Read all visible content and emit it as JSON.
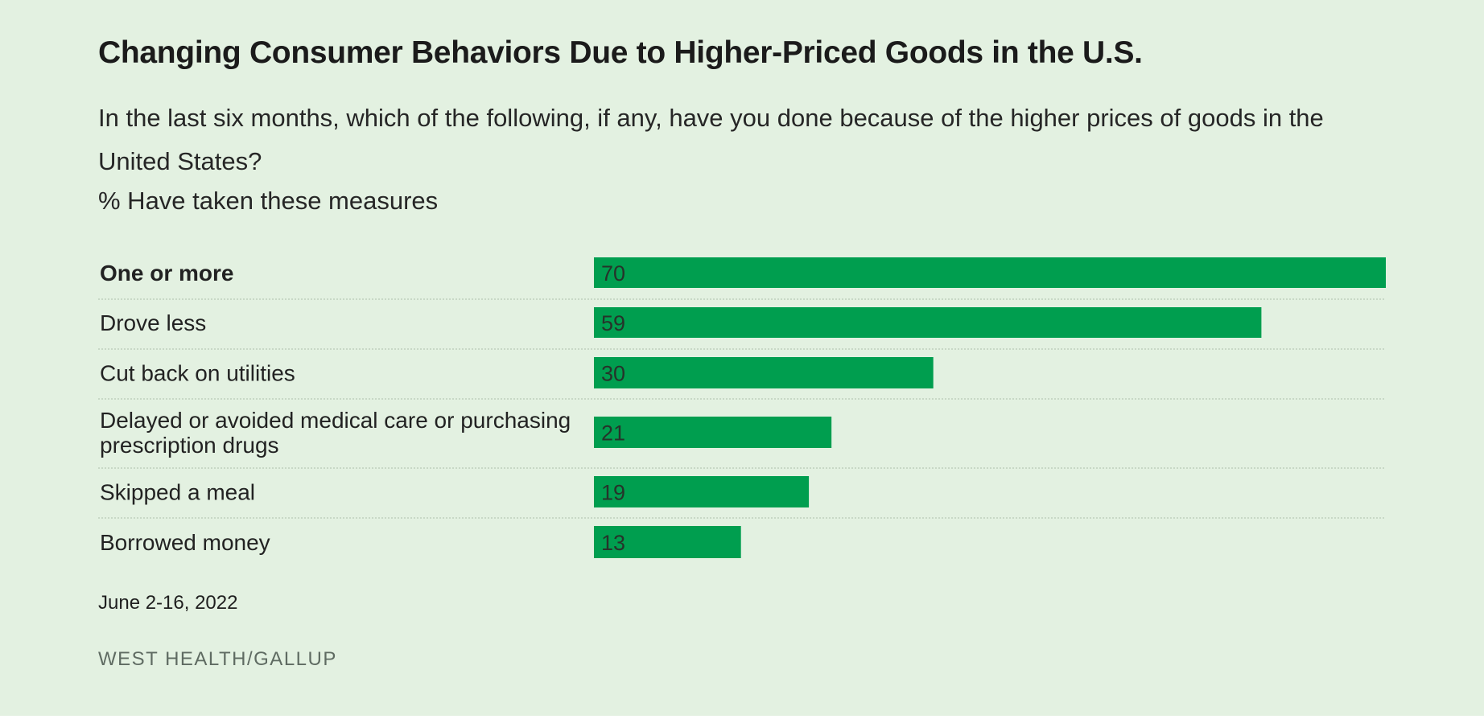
{
  "header": {
    "title": "Changing Consumer Behaviors Due to Higher-Priced Goods in the U.S.",
    "subtitle": "In the last six months, which of the following, if any, have you done because of the higher prices of goods in the United States?",
    "measure": "% Have taken these measures"
  },
  "footer": {
    "date": "June 2-16, 2022",
    "source": "WEST HEALTH/GALLUP"
  },
  "colors": {
    "bar": "#009e4f",
    "background": "#e3f1e1",
    "gridline": "#b9c9b7"
  },
  "chart_data": {
    "type": "bar",
    "orientation": "horizontal",
    "categories": [
      "One or more",
      "Drove less",
      "Cut back on utilities",
      "Delayed or avoided medical care or purchasing prescription drugs",
      "Skipped a meal",
      "Borrowed money"
    ],
    "category_lines": [
      [
        "One or more"
      ],
      [
        "Drove less"
      ],
      [
        "Cut back on utilities"
      ],
      [
        "Delayed or avoided medical care or purchasing",
        "prescription drugs"
      ],
      [
        "Skipped a meal"
      ],
      [
        "Borrowed money"
      ]
    ],
    "bold_categories": [
      "One or more"
    ],
    "values": [
      70,
      59,
      30,
      21,
      19,
      13
    ],
    "xlim": [
      0,
      70
    ],
    "data_labels": true,
    "grid": false,
    "legend": "none"
  }
}
